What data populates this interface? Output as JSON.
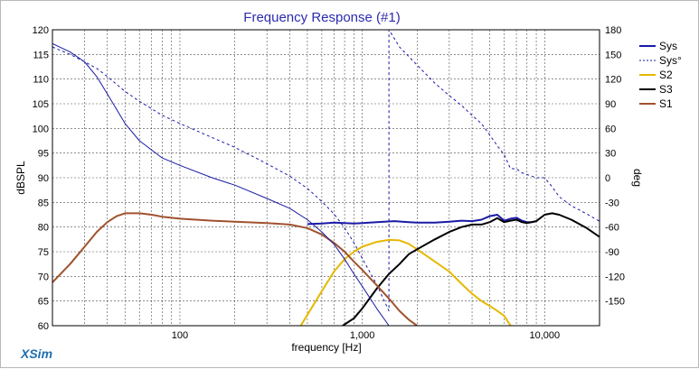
{
  "app_name": "XSim",
  "chart_data": {
    "type": "line",
    "title": "Frequency Response (#1)",
    "xlabel": "frequency [Hz]",
    "ylabel_left": "dBSPL",
    "ylabel_right": "deg",
    "x_scale": "log",
    "xlim": [
      20,
      20000
    ],
    "ylim_left": [
      60,
      120
    ],
    "ylim_right": [
      -180,
      180
    ],
    "x_tick_labels": [
      {
        "value": 100,
        "label": "100"
      },
      {
        "value": 1000,
        "label": "1,000"
      },
      {
        "value": 10000,
        "label": "10,000"
      }
    ],
    "y_left_ticks": [
      60,
      65,
      70,
      75,
      80,
      85,
      90,
      95,
      100,
      105,
      110,
      115,
      120
    ],
    "y_right_ticks": [
      -150,
      -120,
      -90,
      -60,
      -30,
      0,
      30,
      60,
      90,
      120,
      150,
      180
    ],
    "grid": true,
    "legend_position": "right",
    "series": [
      {
        "name": "Sys",
        "axis": "left",
        "color": "#1a1aa6",
        "dash": "solid",
        "width": 2,
        "points": [
          [
            500,
            80.6
          ],
          [
            600,
            80.7
          ],
          [
            700,
            80.9
          ],
          [
            800,
            80.8
          ],
          [
            900,
            80.7
          ],
          [
            1000,
            80.8
          ],
          [
            1200,
            81.0
          ],
          [
            1500,
            81.2
          ],
          [
            1800,
            81.0
          ],
          [
            2000,
            80.9
          ],
          [
            2500,
            80.9
          ],
          [
            3000,
            81.1
          ],
          [
            3500,
            81.3
          ],
          [
            4000,
            81.2
          ],
          [
            4500,
            81.5
          ],
          [
            5000,
            82.2
          ],
          [
            5500,
            82.5
          ],
          [
            6000,
            81.3
          ],
          [
            6500,
            81.7
          ],
          [
            7000,
            81.9
          ],
          [
            7500,
            81.3
          ],
          [
            8000,
            81.0
          ],
          [
            8500,
            81.0
          ],
          [
            9000,
            81.2
          ]
        ]
      },
      {
        "name": "Sys°",
        "axis": "right",
        "color": "#1a1aa6",
        "dash": "dashed",
        "width": 1,
        "points": [
          [
            20,
            159
          ],
          [
            25,
            150
          ],
          [
            30,
            141
          ],
          [
            35,
            133
          ],
          [
            40,
            123
          ],
          [
            50,
            105
          ],
          [
            60,
            93
          ],
          [
            80,
            76
          ],
          [
            100,
            66
          ],
          [
            150,
            49
          ],
          [
            200,
            37
          ],
          [
            300,
            17
          ],
          [
            400,
            2
          ],
          [
            500,
            -13
          ],
          [
            600,
            -29
          ],
          [
            700,
            -44
          ],
          [
            800,
            -61
          ],
          [
            900,
            -79
          ],
          [
            1000,
            -98
          ],
          [
            1200,
            -130
          ],
          [
            1400,
            -162
          ],
          [
            1400,
            180
          ],
          [
            1600,
            159
          ],
          [
            2000,
            137
          ],
          [
            2500,
            115
          ],
          [
            3000,
            100
          ],
          [
            3500,
            88
          ],
          [
            4000,
            76
          ],
          [
            4500,
            66
          ],
          [
            5000,
            52
          ],
          [
            5500,
            39
          ],
          [
            6000,
            28
          ],
          [
            6500,
            11
          ],
          [
            7000,
            11
          ],
          [
            7500,
            6
          ],
          [
            8000,
            4
          ],
          [
            9000,
            0
          ],
          [
            10000,
            0
          ],
          [
            11000,
            -11
          ],
          [
            12000,
            -23
          ],
          [
            14000,
            -34
          ],
          [
            17000,
            -44
          ],
          [
            20000,
            -53
          ]
        ]
      },
      {
        "name": "S2",
        "axis": "left",
        "color": "#e6b800",
        "dash": "solid",
        "width": 2,
        "points": [
          [
            460,
            60
          ],
          [
            600,
            67
          ],
          [
            700,
            71
          ],
          [
            800,
            73.5
          ],
          [
            900,
            75
          ],
          [
            1000,
            76
          ],
          [
            1200,
            77
          ],
          [
            1400,
            77.4
          ],
          [
            1600,
            77.3
          ],
          [
            1800,
            76.6
          ],
          [
            2000,
            75.5
          ],
          [
            2500,
            73
          ],
          [
            3000,
            71
          ],
          [
            3500,
            68.5
          ],
          [
            4000,
            66.5
          ],
          [
            4500,
            65
          ],
          [
            5000,
            64
          ],
          [
            5500,
            63
          ],
          [
            6000,
            62
          ],
          [
            6500,
            60
          ]
        ]
      },
      {
        "name": "S3",
        "axis": "left",
        "color": "#000000",
        "dash": "solid",
        "width": 2,
        "points": [
          [
            780,
            60
          ],
          [
            900,
            61.5
          ],
          [
            1000,
            63.5
          ],
          [
            1200,
            67.5
          ],
          [
            1400,
            70.5
          ],
          [
            1600,
            72.5
          ],
          [
            1800,
            74.5
          ],
          [
            2000,
            75.5
          ],
          [
            2500,
            77.5
          ],
          [
            3000,
            79
          ],
          [
            3500,
            80
          ],
          [
            4000,
            80.5
          ],
          [
            4500,
            80.5
          ],
          [
            5000,
            81
          ],
          [
            5500,
            81.8
          ],
          [
            6000,
            81
          ],
          [
            6500,
            81.3
          ],
          [
            7000,
            81.5
          ],
          [
            7500,
            81
          ],
          [
            8000,
            80.8
          ],
          [
            9000,
            81.2
          ],
          [
            10000,
            82.5
          ],
          [
            11000,
            82.8
          ],
          [
            12000,
            82.5
          ],
          [
            14000,
            81.5
          ],
          [
            17000,
            79.8
          ],
          [
            20000,
            78
          ]
        ]
      },
      {
        "name": "S1",
        "axis": "left",
        "color": "#a0522d",
        "dash": "solid",
        "width": 2,
        "points": [
          [
            20,
            68.8
          ],
          [
            25,
            72.5
          ],
          [
            30,
            76
          ],
          [
            35,
            79
          ],
          [
            40,
            81
          ],
          [
            45,
            82.2
          ],
          [
            50,
            82.8
          ],
          [
            60,
            82.8
          ],
          [
            70,
            82.5
          ],
          [
            80,
            82.1
          ],
          [
            100,
            81.7
          ],
          [
            150,
            81.3
          ],
          [
            200,
            81.1
          ],
          [
            300,
            80.8
          ],
          [
            400,
            80.5
          ],
          [
            500,
            79.8
          ],
          [
            600,
            78.5
          ],
          [
            700,
            76.8
          ],
          [
            800,
            75
          ],
          [
            900,
            73
          ],
          [
            1000,
            71.3
          ],
          [
            1200,
            68.2
          ],
          [
            1400,
            65.5
          ],
          [
            1600,
            63
          ],
          [
            1800,
            61.2
          ],
          [
            2000,
            60
          ]
        ]
      },
      {
        "name": "",
        "axis": "left",
        "color": "#1a1aa6",
        "dash": "solid",
        "width": 1,
        "points": [
          [
            20,
            117.2
          ],
          [
            25,
            115.5
          ],
          [
            30,
            113.5
          ],
          [
            35,
            110.5
          ],
          [
            40,
            107
          ],
          [
            50,
            101
          ],
          [
            60,
            97.5
          ],
          [
            80,
            94
          ],
          [
            100,
            92.5
          ],
          [
            150,
            90
          ],
          [
            200,
            88.5
          ],
          [
            300,
            85.8
          ],
          [
            400,
            83.8
          ],
          [
            500,
            81.5
          ],
          [
            600,
            79
          ],
          [
            700,
            76.5
          ],
          [
            800,
            73.5
          ],
          [
            900,
            70.5
          ],
          [
            1000,
            68
          ],
          [
            1200,
            63.5
          ],
          [
            1400,
            60
          ]
        ]
      }
    ]
  }
}
